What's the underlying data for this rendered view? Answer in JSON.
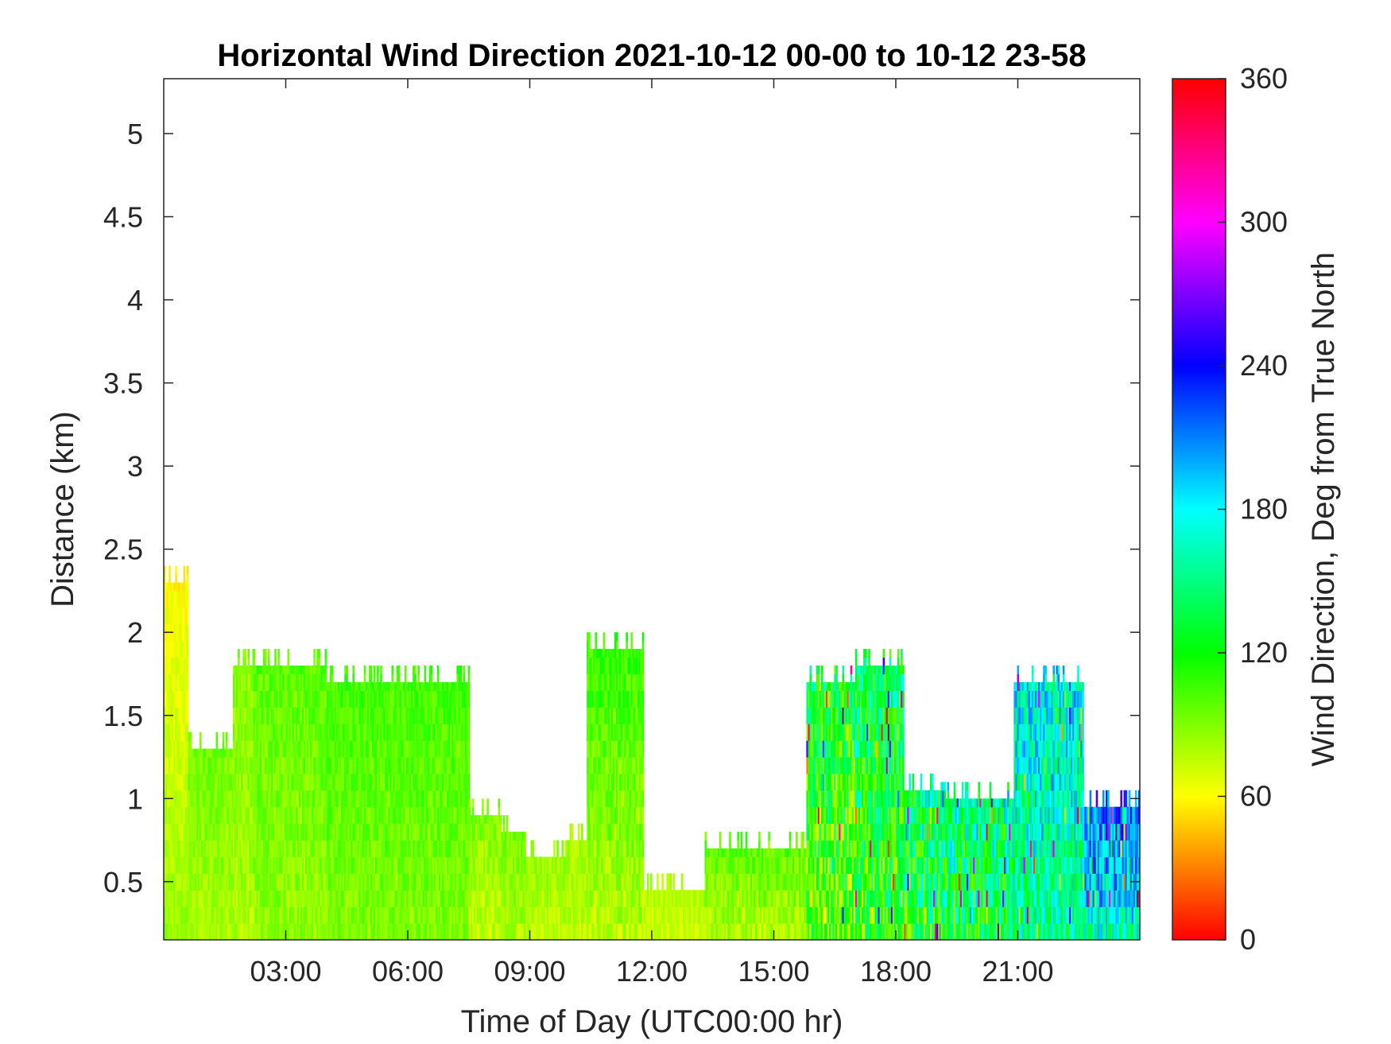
{
  "chart_data": {
    "type": "heatmap",
    "title": "Horizontal Wind Direction 2021-10-12 00-00 to 10-12 23-58",
    "xlabel": "Time of Day (UTC00:00 hr)",
    "ylabel": "Distance (km)",
    "xlim": [
      0,
      24
    ],
    "ylim": [
      0.15,
      5.33
    ],
    "x_ticks": [
      {
        "value": 3,
        "label": "03:00"
      },
      {
        "value": 6,
        "label": "06:00"
      },
      {
        "value": 9,
        "label": "09:00"
      },
      {
        "value": 12,
        "label": "12:00"
      },
      {
        "value": 15,
        "label": "15:00"
      },
      {
        "value": 18,
        "label": "18:00"
      },
      {
        "value": 21,
        "label": "21:00"
      }
    ],
    "y_ticks": [
      {
        "value": 0.5,
        "label": "0.5"
      },
      {
        "value": 1,
        "label": "1"
      },
      {
        "value": 1.5,
        "label": "1.5"
      },
      {
        "value": 2,
        "label": "2"
      },
      {
        "value": 2.5,
        "label": "2.5"
      },
      {
        "value": 3,
        "label": "3"
      },
      {
        "value": 3.5,
        "label": "3.5"
      },
      {
        "value": 4,
        "label": "4"
      },
      {
        "value": 4.5,
        "label": "4.5"
      },
      {
        "value": 5,
        "label": "5"
      }
    ],
    "colorbar": {
      "label": "Wind Direction, Deg from True North",
      "range": [
        0,
        360
      ],
      "colormap": "hsv",
      "ticks": [
        {
          "value": 0,
          "label": "0"
        },
        {
          "value": 60,
          "label": "60"
        },
        {
          "value": 120,
          "label": "120"
        },
        {
          "value": 180,
          "label": "180"
        },
        {
          "value": 240,
          "label": "240"
        },
        {
          "value": 300,
          "label": "300"
        },
        {
          "value": 360,
          "label": "360"
        }
      ]
    },
    "regions": [
      {
        "t0": 0.0,
        "t1": 0.6,
        "top": 2.3,
        "dir_low": 85,
        "dir_high": 58,
        "noise": 8
      },
      {
        "t0": 0.6,
        "t1": 1.7,
        "top": 1.3,
        "dir_low": 80,
        "dir_high": 95,
        "noise": 10
      },
      {
        "t0": 1.7,
        "t1": 2.2,
        "top": 1.8,
        "dir_low": 80,
        "dir_high": 90,
        "noise": 12
      },
      {
        "t0": 2.2,
        "t1": 4.0,
        "top": 1.8,
        "dir_low": 85,
        "dir_high": 100,
        "noise": 12
      },
      {
        "t0": 4.0,
        "t1": 7.5,
        "top": 1.7,
        "dir_low": 90,
        "dir_high": 105,
        "noise": 12
      },
      {
        "t0": 7.5,
        "t1": 8.3,
        "top": 0.9,
        "dir_low": 75,
        "dir_high": 90,
        "noise": 12
      },
      {
        "t0": 8.3,
        "t1": 8.9,
        "top": 0.8,
        "dir_low": 80,
        "dir_high": 95,
        "noise": 12
      },
      {
        "t0": 8.9,
        "t1": 9.9,
        "top": 0.65,
        "dir_low": 75,
        "dir_high": 85,
        "noise": 10
      },
      {
        "t0": 9.9,
        "t1": 10.4,
        "top": 0.75,
        "dir_low": 75,
        "dir_high": 85,
        "noise": 10
      },
      {
        "t0": 10.4,
        "t1": 11.8,
        "top": 1.9,
        "dir_low": 78,
        "dir_high": 110,
        "noise": 15
      },
      {
        "t0": 11.8,
        "t1": 13.3,
        "top": 0.45,
        "dir_low": 72,
        "dir_high": 80,
        "noise": 8
      },
      {
        "t0": 13.3,
        "t1": 15.8,
        "top": 0.7,
        "dir_low": 80,
        "dir_high": 100,
        "noise": 15
      },
      {
        "t0": 15.8,
        "t1": 17.0,
        "top": 1.7,
        "dir_low": 100,
        "dir_high": 130,
        "noise": 45
      },
      {
        "t0": 17.0,
        "t1": 18.2,
        "top": 1.8,
        "dir_low": 110,
        "dir_high": 140,
        "noise": 45
      },
      {
        "t0": 18.2,
        "t1": 19.1,
        "top": 1.05,
        "dir_low": 120,
        "dir_high": 150,
        "noise": 50
      },
      {
        "t0": 19.1,
        "t1": 20.9,
        "top": 1.0,
        "dir_low": 125,
        "dir_high": 160,
        "noise": 50
      },
      {
        "t0": 20.9,
        "t1": 22.6,
        "top": 1.7,
        "dir_low": 150,
        "dir_high": 180,
        "noise": 40
      },
      {
        "t0": 22.6,
        "t1": 24.0,
        "top": 0.95,
        "dir_low": 170,
        "dir_high": 225,
        "noise": 40
      }
    ]
  }
}
